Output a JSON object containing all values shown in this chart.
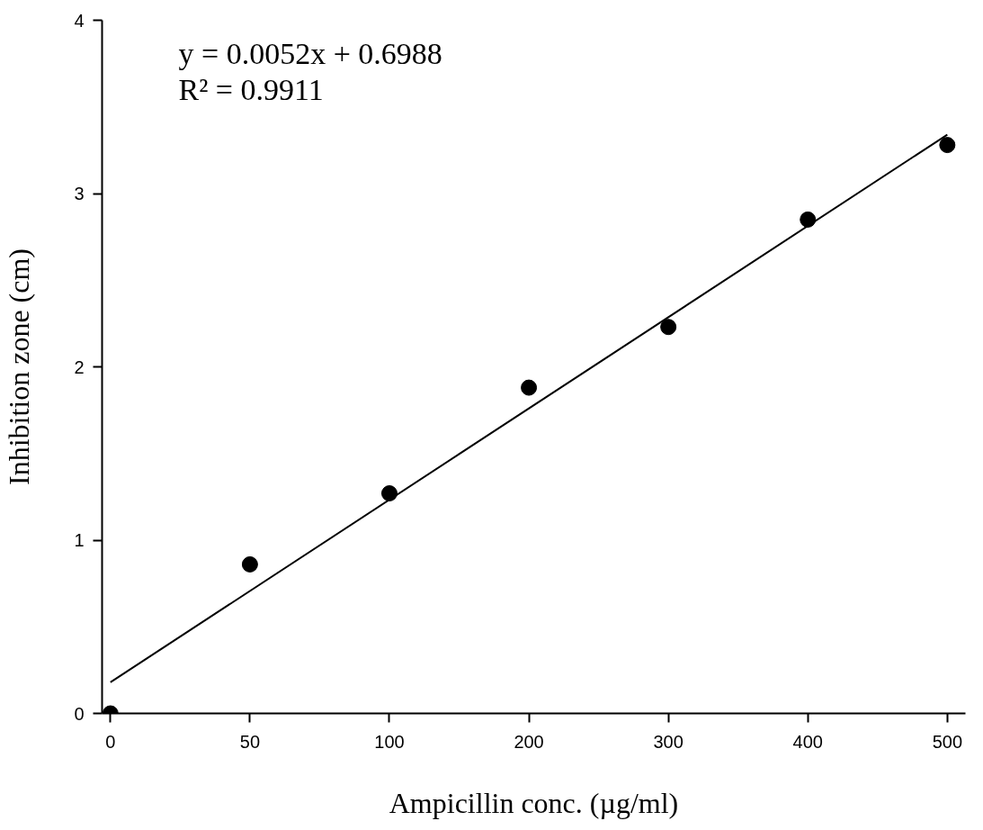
{
  "chart_data": {
    "type": "scatter",
    "xlabel": "Ampicillin conc. (µg/ml)",
    "ylabel": "Inhibition zone (cm)",
    "categories": [
      "0",
      "50",
      "100",
      "200",
      "300",
      "400",
      "500"
    ],
    "series": [
      {
        "color": "#000000",
        "marker": "circle",
        "values": [
          0.0,
          0.86,
          1.27,
          1.88,
          2.23,
          2.85,
          3.28
        ]
      },
      {
        "type": "line",
        "marker": "none",
        "color": "#000000",
        "x": [
          "0",
          "500"
        ],
        "values": [
          0.18,
          3.34
        ]
      }
    ],
    "ylim": [
      0,
      4
    ],
    "yticks": [
      0,
      1,
      2,
      3,
      4
    ],
    "annotations": [
      "y = 0.0052x + 0.6988",
      "R² = 0.9911"
    ]
  }
}
